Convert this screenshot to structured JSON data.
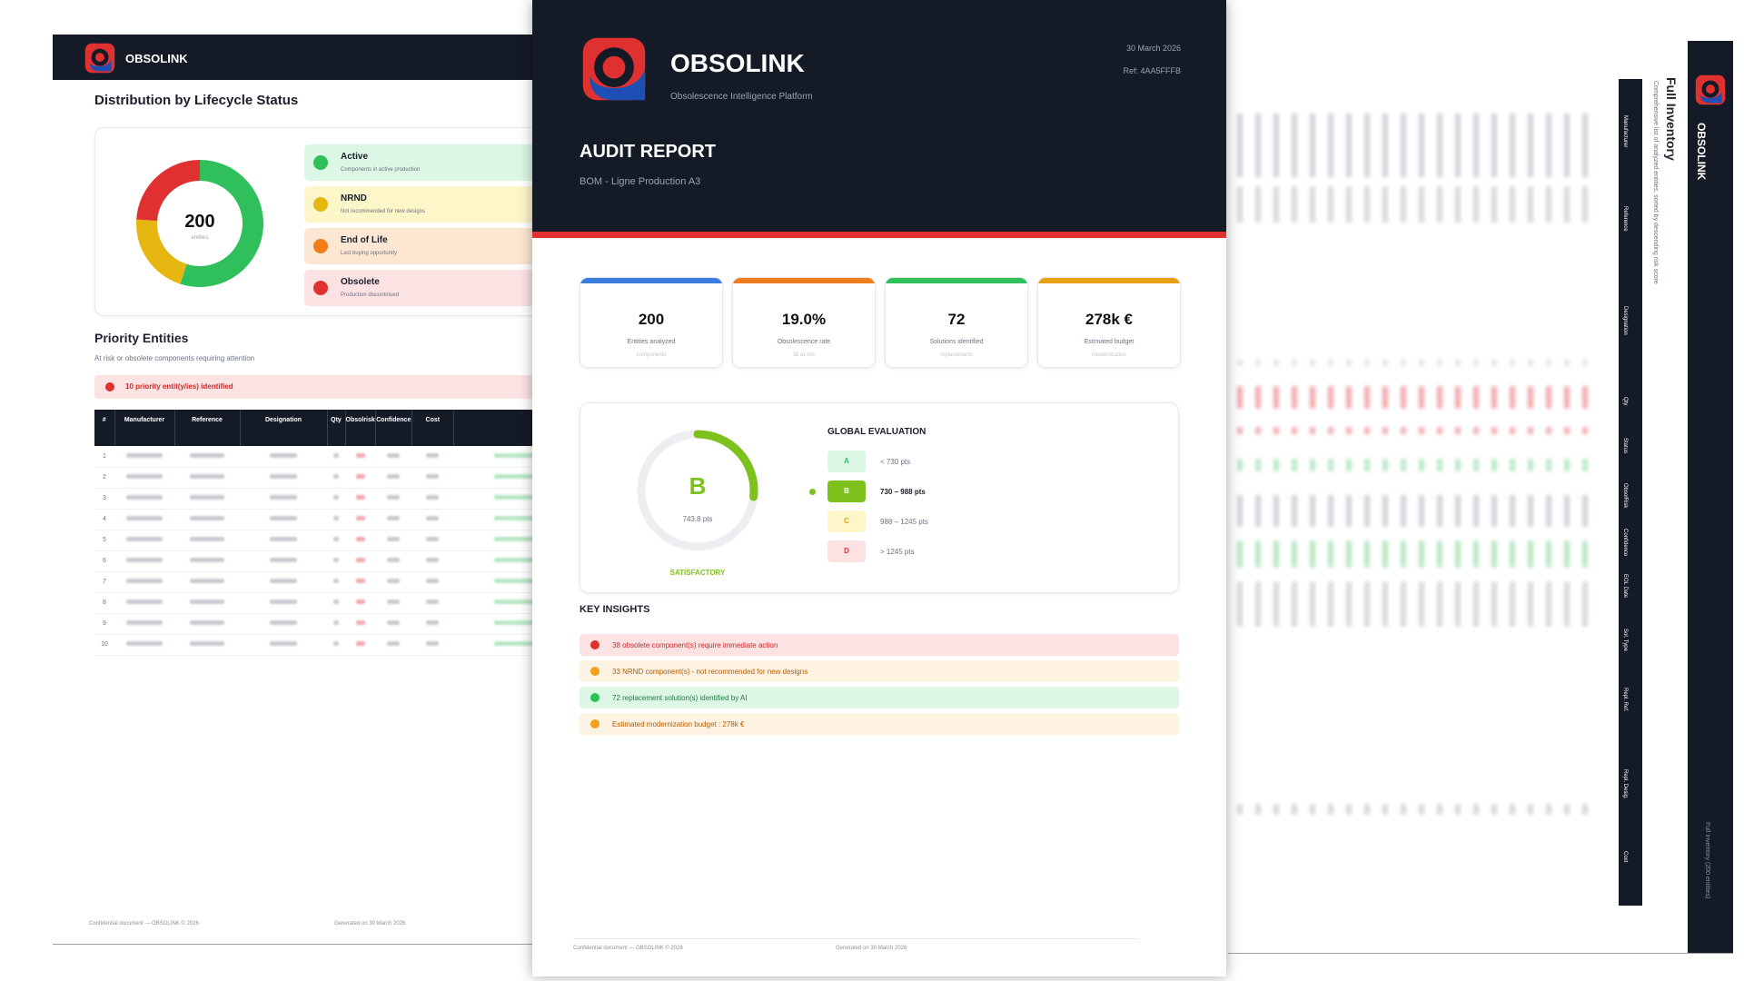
{
  "brand": {
    "name": "OBSOLINK",
    "tagline": "Obsolescence Intelligence Platform",
    "colors": {
      "navy": "#151a27",
      "red": "#e03131",
      "blue": "#1e4fb4"
    }
  },
  "left_page": {
    "header_brand": "OBSOLINK",
    "distribution_title": "Distribution by Lifecycle Status",
    "donut": {
      "total": "200",
      "unit": "entities"
    },
    "lifecycle": [
      {
        "name": "Active",
        "desc": "Components in active production",
        "color": "#2fbf5b",
        "bg": "#dcf7e6"
      },
      {
        "name": "NRND",
        "desc": "Not recommended for new designs",
        "color": "#e6b711",
        "bg": "#fdf6c9"
      },
      {
        "name": "End of Life",
        "desc": "Last buying opportunity",
        "color": "#f07c1c",
        "bg": "#fde7d3"
      },
      {
        "name": "Obsolete",
        "desc": "Production discontinued",
        "color": "#e03131",
        "bg": "#fde2e4"
      }
    ],
    "priority_title": "Priority Entities",
    "priority_sub": "At risk or obsolete components requiring attention",
    "priority_banner": "10 priority entit(y/ies) identified",
    "table_headers": [
      "#",
      "Manufacturer",
      "Reference",
      "Designation",
      "Qty",
      "Obsolrisk",
      "Confidence",
      "Cost"
    ],
    "row_numbers": [
      "1",
      "2",
      "3",
      "4",
      "5",
      "6",
      "7",
      "8",
      "9",
      "10"
    ],
    "footer_left": "Confidential document — OBSOLINK © 2026",
    "footer_right": "Generated on 30 March 2026"
  },
  "center_page": {
    "date": "30 March 2026",
    "ref": "Ref: 4AA5FFFB",
    "title": "AUDIT REPORT",
    "bom": "BOM - Ligne Production A3",
    "kpis": [
      {
        "value": "200",
        "label": "Entities analyzed",
        "sub": "components",
        "color": "#3b7ddd"
      },
      {
        "value": "19.0%",
        "label": "Obsolescence rate",
        "sub": "38 at risk",
        "color": "#f07c1c"
      },
      {
        "value": "72",
        "label": "Solutions identified",
        "sub": "replacements",
        "color": "#2fbf5b"
      },
      {
        "value": "278k €",
        "label": "Estimated budget",
        "sub": "modernization",
        "color": "#e6a011"
      }
    ],
    "evaluation": {
      "grade": "B",
      "points": "743.8 pts",
      "verdict": "SATISFACTORY",
      "title": "GLOBAL EVALUATION",
      "scale": [
        {
          "grade": "A",
          "range": "< 730 pts",
          "bg": "#dcf7e6",
          "fg": "#2fbf5b"
        },
        {
          "grade": "B",
          "range": "730 – 988 pts",
          "bg": "#7cc11c",
          "fg": "#ffffff"
        },
        {
          "grade": "C",
          "range": "988 – 1245 pts",
          "bg": "#fdf6c9",
          "fg": "#e6a011"
        },
        {
          "grade": "D",
          "range": "> 1245 pts",
          "bg": "#fde2e4",
          "fg": "#e03131"
        }
      ]
    },
    "insights_title": "KEY INSIGHTS",
    "insights": [
      {
        "text": "38 obsolete component(s) require immediate action",
        "dot": "#e03131",
        "bg": "#fde2e4",
        "fg": "#c92a2a"
      },
      {
        "text": "33 NRND component(s) - not recommended for new designs",
        "dot": "#f0a01c",
        "bg": "#fef3e2",
        "fg": "#b35c00"
      },
      {
        "text": "72 replacement solution(s) identified by AI",
        "dot": "#2fbf5b",
        "bg": "#dcf7e6",
        "fg": "#1e7a3c"
      },
      {
        "text": "Estimated modernization budget : 278k €",
        "dot": "#f0a01c",
        "bg": "#fef3e2",
        "fg": "#b35c00"
      }
    ],
    "footer_left": "Confidential document — OBSOLINK © 2026",
    "footer_right": "Generated on 30 March 2026"
  },
  "right_page": {
    "brand": "OBSOLINK",
    "title": "Full Inventory",
    "subtitle": "Comprehensive list of analyzed entities, sorted by descending risk score",
    "columns": [
      "Manufacturer",
      "Reference",
      "Designation",
      "Qty",
      "Status",
      "ObsolRisk",
      "Confidence",
      "EOL Date",
      "Sol. Type",
      "Repl. Ref.",
      "Repl. Desig.",
      "Cost"
    ],
    "footnote": "Full Inventory (200 entities)"
  }
}
